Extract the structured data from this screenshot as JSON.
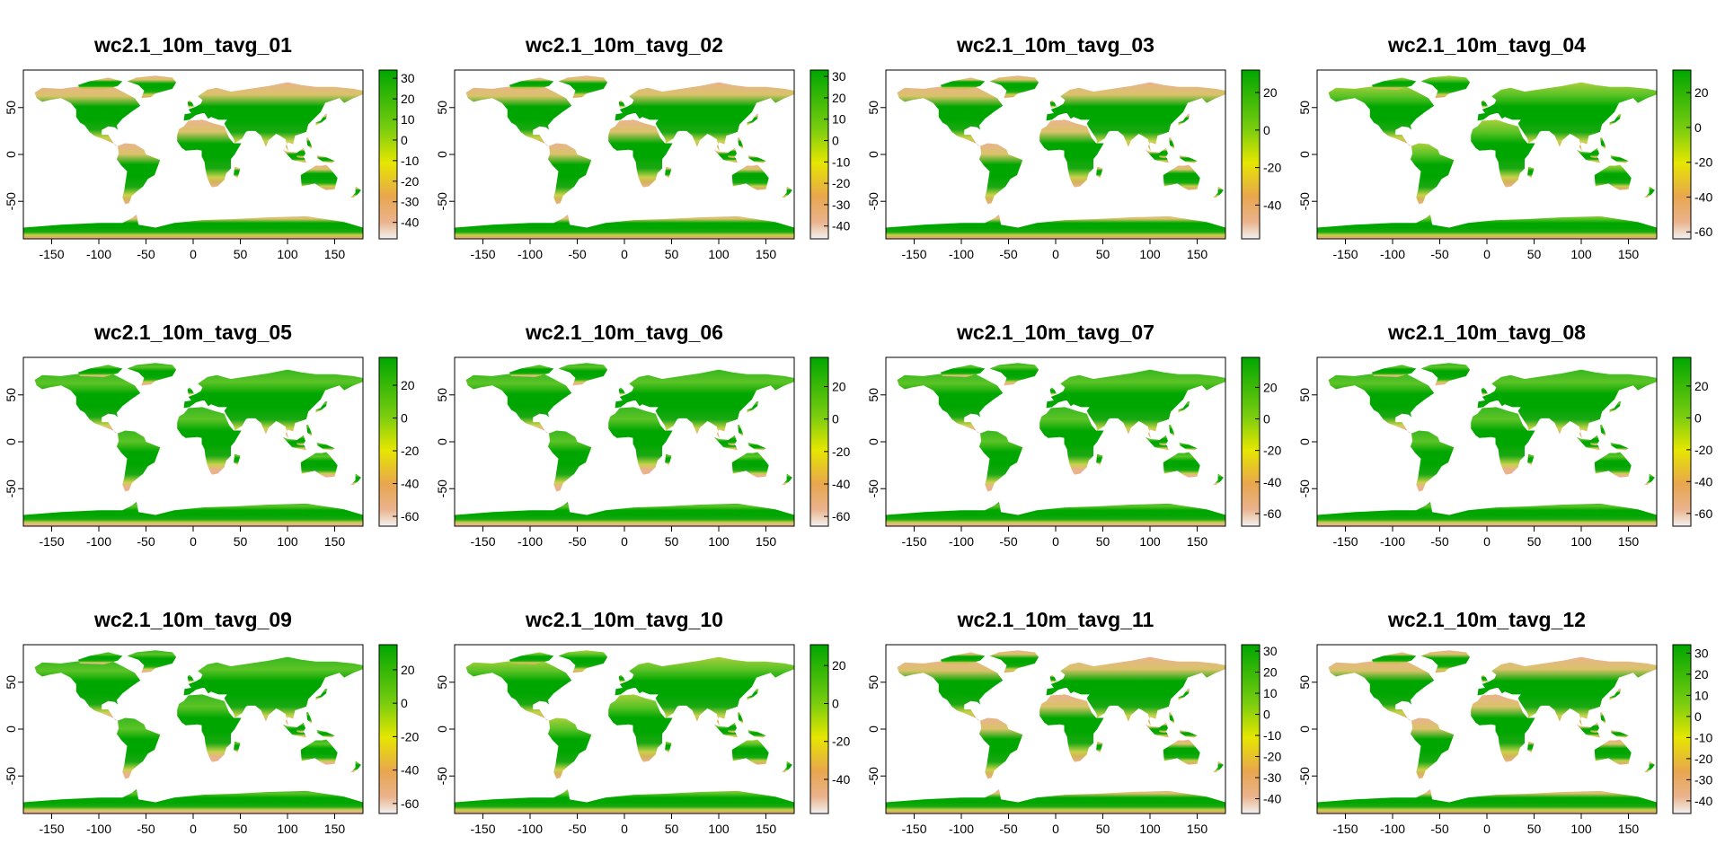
{
  "chart_data": {
    "type": "heatmap",
    "layout": {
      "rows": 3,
      "cols": 4
    },
    "x_ticks": [
      -150,
      -100,
      -50,
      0,
      50,
      100,
      150
    ],
    "y_ticks": [
      50,
      0,
      -50
    ],
    "xlim": [
      -180,
      180
    ],
    "ylim": [
      -90,
      90
    ],
    "colors": {
      "high": "#00a600",
      "mid": "#e6e600",
      "low": "#eab38c",
      "lowest": "#f2f2f2"
    },
    "panels": [
      {
        "title": "wc2.1_10m_tavg_01",
        "legend_ticks": [
          30,
          20,
          10,
          0,
          -10,
          -20,
          -30,
          -40
        ],
        "legend_range": [
          -48,
          34
        ]
      },
      {
        "title": "wc2.1_10m_tavg_02",
        "legend_ticks": [
          30,
          20,
          10,
          0,
          -10,
          -20,
          -30,
          -40
        ],
        "legend_range": [
          -46,
          33
        ]
      },
      {
        "title": "wc2.1_10m_tavg_03",
        "legend_ticks": [
          20,
          0,
          -20,
          -40
        ],
        "legend_range": [
          -58,
          32
        ]
      },
      {
        "title": "wc2.1_10m_tavg_04",
        "legend_ticks": [
          20,
          0,
          -20,
          -40,
          -60
        ],
        "legend_range": [
          -64,
          33
        ]
      },
      {
        "title": "wc2.1_10m_tavg_05",
        "legend_ticks": [
          20,
          0,
          -20,
          -40,
          -60
        ],
        "legend_range": [
          -66,
          37
        ]
      },
      {
        "title": "wc2.1_10m_tavg_06",
        "legend_ticks": [
          20,
          0,
          -20,
          -40,
          -60
        ],
        "legend_range": [
          -66,
          38
        ]
      },
      {
        "title": "wc2.1_10m_tavg_07",
        "legend_ticks": [
          20,
          0,
          -20,
          -40,
          -60
        ],
        "legend_range": [
          -68,
          39
        ]
      },
      {
        "title": "wc2.1_10m_tavg_08",
        "legend_ticks": [
          20,
          0,
          -20,
          -40,
          -60
        ],
        "legend_range": [
          -68,
          38
        ]
      },
      {
        "title": "wc2.1_10m_tavg_09",
        "legend_ticks": [
          20,
          0,
          -20,
          -40,
          -60
        ],
        "legend_range": [
          -66,
          35
        ]
      },
      {
        "title": "wc2.1_10m_tavg_10",
        "legend_ticks": [
          20,
          0,
          -20,
          -40
        ],
        "legend_range": [
          -58,
          31
        ]
      },
      {
        "title": "wc2.1_10m_tavg_11",
        "legend_ticks": [
          30,
          20,
          10,
          0,
          -10,
          -20,
          -30,
          -40
        ],
        "legend_range": [
          -47,
          33
        ]
      },
      {
        "title": "wc2.1_10m_tavg_12",
        "legend_ticks": [
          30,
          20,
          10,
          0,
          -10,
          -20,
          -30,
          -40
        ],
        "legend_range": [
          -46,
          34
        ]
      }
    ]
  }
}
